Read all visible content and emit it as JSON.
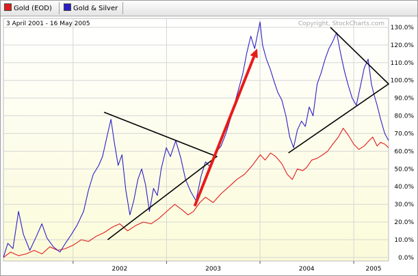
{
  "legend": [
    {
      "label": "Gold (EOD)",
      "color": "#e11b1b"
    },
    {
      "label": "Gold & Silver",
      "color": "#2b1fc4"
    }
  ],
  "chart_data": {
    "type": "line",
    "date_range": "3 April 2001 - 16 May 2005",
    "watermark": "Copyright, StockCharts.com",
    "x_range": [
      "2001-04-03",
      "2005-05-16"
    ],
    "x_ticks": [
      {
        "label": "2002",
        "date": "2001-12-31"
      },
      {
        "label": "2003",
        "date": "2002-12-31"
      },
      {
        "label": "2004",
        "date": "2003-12-31"
      },
      {
        "label": "2005",
        "date": "2004-12-31"
      }
    ],
    "ylim": [
      -2,
      135
    ],
    "y_ticks": [
      0,
      10,
      20,
      30,
      40,
      50,
      60,
      70,
      80,
      90,
      100,
      110,
      120,
      130
    ],
    "y_tick_labels": [
      "0.0%",
      "10.0%",
      "20.0%",
      "30.0%",
      "40.0%",
      "50.0%",
      "60.0%",
      "70.0%",
      "80.0%",
      "90.0%",
      "100.0%",
      "110.0%",
      "120.0%",
      "130.0%"
    ],
    "grid": true,
    "series": [
      {
        "name": "Gold & Silver",
        "color": "#2b1fc4",
        "points": [
          [
            "2001-04-03",
            0
          ],
          [
            "2001-04-20",
            8
          ],
          [
            "2001-05-10",
            5
          ],
          [
            "2001-06-01",
            26
          ],
          [
            "2001-06-20",
            13
          ],
          [
            "2001-07-15",
            4
          ],
          [
            "2001-08-10",
            12
          ],
          [
            "2001-08-31",
            19
          ],
          [
            "2001-09-20",
            11
          ],
          [
            "2001-10-15",
            6
          ],
          [
            "2001-11-10",
            3
          ],
          [
            "2001-12-01",
            8
          ],
          [
            "2001-12-20",
            12
          ],
          [
            "2002-01-15",
            18
          ],
          [
            "2002-02-10",
            26
          ],
          [
            "2002-03-01",
            38
          ],
          [
            "2002-03-20",
            47
          ],
          [
            "2002-04-10",
            52
          ],
          [
            "2002-04-25",
            57
          ],
          [
            "2002-05-15",
            70
          ],
          [
            "2002-05-28",
            78
          ],
          [
            "2002-06-10",
            65
          ],
          [
            "2002-06-25",
            52
          ],
          [
            "2002-07-10",
            58
          ],
          [
            "2002-07-25",
            38
          ],
          [
            "2002-08-10",
            24
          ],
          [
            "2002-08-25",
            32
          ],
          [
            "2002-09-10",
            44
          ],
          [
            "2002-09-25",
            50
          ],
          [
            "2002-10-10",
            41
          ],
          [
            "2002-10-25",
            26
          ],
          [
            "2002-11-10",
            39
          ],
          [
            "2002-11-25",
            35
          ],
          [
            "2002-12-10",
            50
          ],
          [
            "2002-12-30",
            62
          ],
          [
            "2003-01-15",
            57
          ],
          [
            "2003-02-05",
            66
          ],
          [
            "2003-02-25",
            56
          ],
          [
            "2003-03-15",
            44
          ],
          [
            "2003-04-05",
            37
          ],
          [
            "2003-04-25",
            32
          ],
          [
            "2003-05-15",
            46
          ],
          [
            "2003-06-01",
            54
          ],
          [
            "2003-06-20",
            51
          ],
          [
            "2003-07-10",
            59
          ],
          [
            "2003-08-01",
            63
          ],
          [
            "2003-08-20",
            70
          ],
          [
            "2003-09-10",
            80
          ],
          [
            "2003-09-25",
            88
          ],
          [
            "2003-10-10",
            96
          ],
          [
            "2003-10-25",
            104
          ],
          [
            "2003-11-10",
            116
          ],
          [
            "2003-11-25",
            125
          ],
          [
            "2003-12-10",
            118
          ],
          [
            "2003-12-31",
            133
          ],
          [
            "2004-01-10",
            120
          ],
          [
            "2004-01-25",
            112
          ],
          [
            "2004-02-10",
            106
          ],
          [
            "2004-02-25",
            99
          ],
          [
            "2004-03-10",
            93
          ],
          [
            "2004-03-25",
            89
          ],
          [
            "2004-04-10",
            80
          ],
          [
            "2004-04-25",
            68
          ],
          [
            "2004-05-10",
            62
          ],
          [
            "2004-05-25",
            72
          ],
          [
            "2004-06-10",
            77
          ],
          [
            "2004-06-25",
            74
          ],
          [
            "2004-07-10",
            85
          ],
          [
            "2004-07-25",
            80
          ],
          [
            "2004-08-10",
            98
          ],
          [
            "2004-08-25",
            104
          ],
          [
            "2004-09-10",
            112
          ],
          [
            "2004-09-25",
            118
          ],
          [
            "2004-10-10",
            122
          ],
          [
            "2004-10-25",
            127
          ],
          [
            "2004-11-10",
            115
          ],
          [
            "2004-11-25",
            105
          ],
          [
            "2004-12-10",
            97
          ],
          [
            "2004-12-25",
            90
          ],
          [
            "2005-01-10",
            86
          ],
          [
            "2005-01-25",
            96
          ],
          [
            "2005-02-10",
            107
          ],
          [
            "2005-02-25",
            112
          ],
          [
            "2005-03-10",
            98
          ],
          [
            "2005-03-20",
            92
          ],
          [
            "2005-04-01",
            86
          ],
          [
            "2005-04-15",
            78
          ],
          [
            "2005-05-01",
            70
          ],
          [
            "2005-05-16",
            66
          ]
        ]
      },
      {
        "name": "Gold (EOD)",
        "color": "#e11b1b",
        "points": [
          [
            "2001-04-03",
            0
          ],
          [
            "2001-05-01",
            3
          ],
          [
            "2001-06-01",
            1
          ],
          [
            "2001-07-01",
            2
          ],
          [
            "2001-08-01",
            4
          ],
          [
            "2001-09-01",
            2
          ],
          [
            "2001-10-01",
            6
          ],
          [
            "2001-11-01",
            4
          ],
          [
            "2001-12-01",
            5
          ],
          [
            "2002-01-01",
            7
          ],
          [
            "2002-02-01",
            10
          ],
          [
            "2002-03-01",
            9
          ],
          [
            "2002-04-01",
            12
          ],
          [
            "2002-05-01",
            14
          ],
          [
            "2002-06-01",
            17
          ],
          [
            "2002-07-01",
            19
          ],
          [
            "2002-08-01",
            15
          ],
          [
            "2002-09-01",
            18
          ],
          [
            "2002-10-01",
            20
          ],
          [
            "2002-11-01",
            19
          ],
          [
            "2002-12-01",
            22
          ],
          [
            "2003-01-01",
            26
          ],
          [
            "2003-02-01",
            30
          ],
          [
            "2003-03-01",
            27
          ],
          [
            "2003-03-25",
            24
          ],
          [
            "2003-04-15",
            26
          ],
          [
            "2003-05-10",
            31
          ],
          [
            "2003-06-01",
            34
          ],
          [
            "2003-07-01",
            31
          ],
          [
            "2003-08-01",
            36
          ],
          [
            "2003-09-01",
            40
          ],
          [
            "2003-10-01",
            44
          ],
          [
            "2003-11-01",
            47
          ],
          [
            "2003-12-01",
            52
          ],
          [
            "2004-01-01",
            58
          ],
          [
            "2004-01-20",
            55
          ],
          [
            "2004-02-10",
            59
          ],
          [
            "2004-03-01",
            57
          ],
          [
            "2004-03-25",
            53
          ],
          [
            "2004-04-15",
            47
          ],
          [
            "2004-05-05",
            44
          ],
          [
            "2004-05-25",
            50
          ],
          [
            "2004-06-15",
            49
          ],
          [
            "2004-07-01",
            51
          ],
          [
            "2004-07-20",
            55
          ],
          [
            "2004-08-10",
            56
          ],
          [
            "2004-09-01",
            58
          ],
          [
            "2004-09-20",
            60
          ],
          [
            "2004-10-10",
            64
          ],
          [
            "2004-11-01",
            68
          ],
          [
            "2004-11-20",
            73
          ],
          [
            "2004-12-10",
            69
          ],
          [
            "2004-12-31",
            64
          ],
          [
            "2005-01-20",
            61
          ],
          [
            "2005-02-10",
            63
          ],
          [
            "2005-03-01",
            66
          ],
          [
            "2005-03-15",
            68
          ],
          [
            "2005-04-01",
            63
          ],
          [
            "2005-04-15",
            65
          ],
          [
            "2005-05-01",
            64
          ],
          [
            "2005-05-16",
            62
          ]
        ]
      }
    ],
    "annotations": {
      "trendlines": [
        {
          "color": "#000000",
          "points": [
            [
              "2002-05-01",
              82
            ],
            [
              "2003-07-15",
              57
            ],
            [
              "2002-05-15",
              10
            ]
          ]
        },
        {
          "color": "#000000",
          "points": [
            [
              "2004-10-01",
              130
            ],
            [
              "2005-05-16",
              98
            ],
            [
              "2004-04-20",
              59
            ]
          ]
        }
      ],
      "arrow": {
        "color": "#e81a1a",
        "from": [
          "2003-04-20",
          29
        ],
        "to": [
          "2003-12-20",
          118
        ]
      }
    }
  }
}
